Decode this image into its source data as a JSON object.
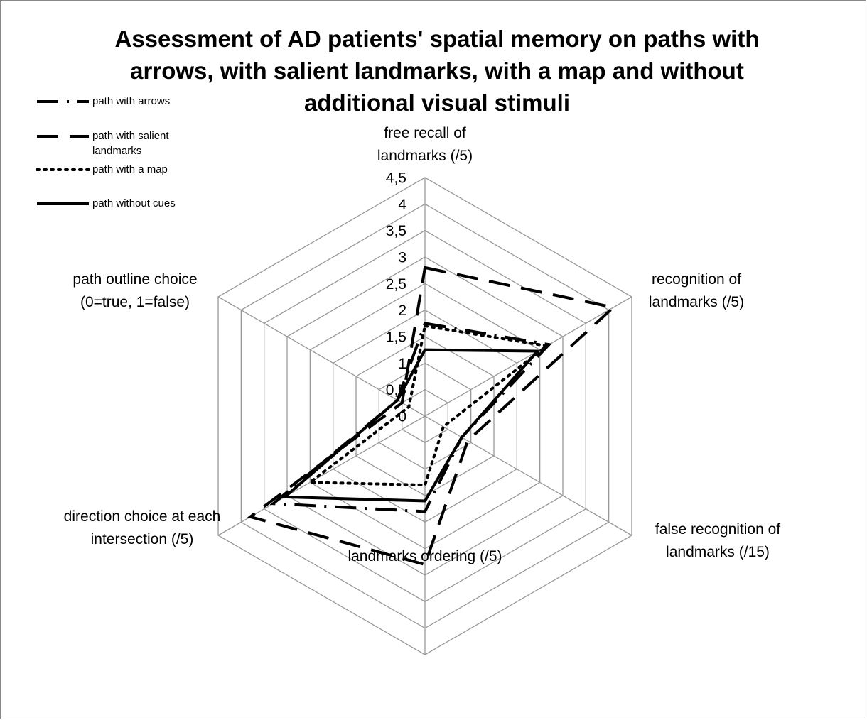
{
  "chart_data": {
    "type": "radar",
    "title": "Assessment of AD patients' spatial memory on paths with arrows, with salient landmarks, with a map and without additional visual stimuli",
    "categories": [
      "free recall of landmarks (/5)",
      "recognition of landmarks (/5)",
      "false recognition of landmarks (/15)",
      "landmarks ordering (/5)",
      "direction choice at each intersection (/5)",
      "path outline choice (0=true, 1=false)"
    ],
    "series": [
      {
        "name": "path with arrows",
        "color": "#000000",
        "line_style": "dash-dot",
        "values": [
          1.75,
          2.7,
          0.8,
          1.8,
          3.3,
          0.6
        ]
      },
      {
        "name": "path with salient landmarks",
        "color": "#000000",
        "line_style": "dashed",
        "values": [
          2.8,
          4.1,
          0.93,
          2.8,
          3.8,
          0.5
        ]
      },
      {
        "name": "path with a map",
        "color": "#000000",
        "line_style": "dotted",
        "values": [
          1.7,
          2.65,
          0.4,
          1.3,
          2.5,
          0.35
        ]
      },
      {
        "name": "path without cues",
        "color": "#000000",
        "line_style": "solid",
        "values": [
          1.25,
          2.45,
          0.8,
          1.6,
          3.05,
          0.6
        ]
      }
    ],
    "rlim": [
      0,
      4.5
    ],
    "rticks": [
      0,
      {
        "value": 0.5,
        "label": "0,5"
      },
      1,
      {
        "value": 1.5,
        "label": "1,5"
      },
      2,
      {
        "value": 2.5,
        "label": "2,5"
      },
      3,
      {
        "value": 3.5,
        "label": "3,5"
      },
      4,
      {
        "value": 4.5,
        "label": "4,5"
      }
    ],
    "grid": true,
    "legend": "top-left"
  }
}
